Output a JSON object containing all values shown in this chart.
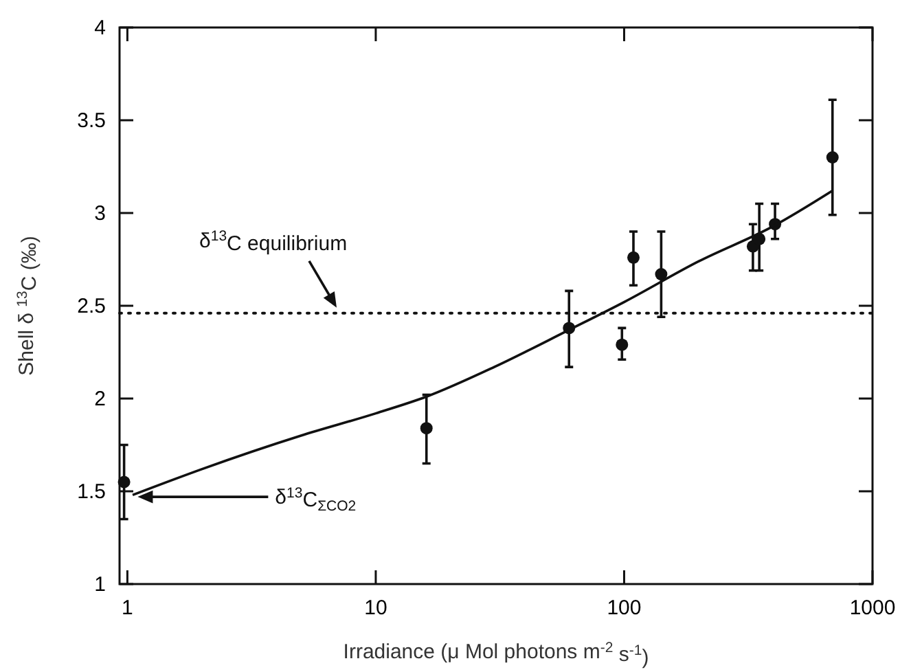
{
  "chart_data": {
    "type": "scatter",
    "xlabel": "Irradiance (μ Mol photons m$^{-2}$ s$^{-1}$)",
    "ylabel": "Shell δ $^{13}$C (‰)",
    "log": "x",
    "xlim": [
      0.93,
      1000
    ],
    "xticks": [
      1,
      10,
      100,
      1000
    ],
    "ylim": [
      1,
      4
    ],
    "yticks": [
      1,
      1.5,
      2,
      2.5,
      3,
      3.5,
      4
    ],
    "grid": false,
    "series": [
      {
        "marker": "circle",
        "color": "#111111",
        "x": [
          0.97,
          16,
          60,
          98,
          109,
          141,
          330,
          350,
          405,
          690
        ],
        "values": [
          1.55,
          1.84,
          2.38,
          2.29,
          2.76,
          2.67,
          2.82,
          2.86,
          2.94,
          3.3
        ],
        "errors": [
          [
            1.35,
            1.75
          ],
          [
            1.65,
            2.02
          ],
          [
            2.17,
            2.58
          ],
          [
            2.21,
            2.38
          ],
          [
            2.61,
            2.9
          ],
          [
            2.44,
            2.9
          ],
          [
            2.69,
            2.94
          ],
          [
            2.69,
            3.05
          ],
          [
            2.86,
            3.05
          ],
          [
            2.99,
            3.61
          ]
        ]
      },
      {
        "type": "line",
        "color": "#111111",
        "line_style": "solid",
        "x": [
          1.05,
          2,
          5,
          10,
          16,
          30,
          60,
          100,
          200,
          400,
          690
        ],
        "values": [
          1.48,
          1.62,
          1.8,
          1.92,
          2.01,
          2.17,
          2.37,
          2.52,
          2.74,
          2.93,
          3.12
        ]
      }
    ],
    "ref_lines": [
      {
        "axis": "y",
        "value": 2.46,
        "label": "δ$^{13}$C equilibrium",
        "line_style": "dotted",
        "color": "#111111"
      }
    ],
    "annotations": [
      {
        "text": "δ$^{13}$C$_{ΣCO2}$",
        "x": 1.1,
        "y": 1.47
      }
    ]
  }
}
